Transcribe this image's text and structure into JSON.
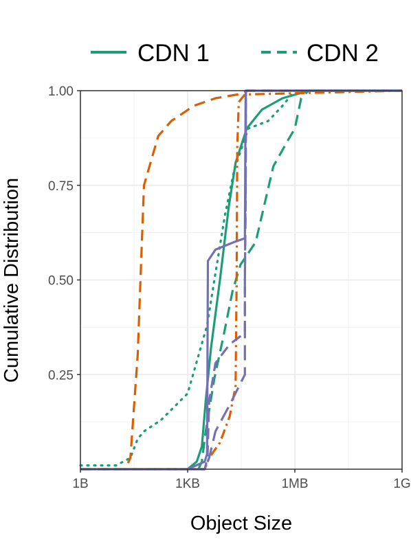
{
  "chart_data": {
    "type": "line",
    "title": "",
    "xlabel": "Object Size",
    "ylabel": "Cumulative Distribution",
    "x_scale": "log10",
    "xlim_bytes": [
      1,
      1000000000
    ],
    "ylim": [
      0,
      1
    ],
    "x_ticks": [
      {
        "label": "1B",
        "value": 1
      },
      {
        "label": "1KB",
        "value": 1000
      },
      {
        "label": "1MB",
        "value": 1000000
      },
      {
        "label": "1G",
        "value": 1000000000
      }
    ],
    "y_ticks": [
      {
        "label": "0.25",
        "value": 0.25
      },
      {
        "label": "0.50",
        "value": 0.5
      },
      {
        "label": "0.75",
        "value": 0.75
      },
      {
        "label": "1.00",
        "value": 1.0
      }
    ],
    "grid": true,
    "legend": {
      "position": "top",
      "entries": [
        {
          "label": "CDN 1",
          "dash": "solid",
          "color": "#1b9e77"
        },
        {
          "label": "CDN 2",
          "dash": "dashed",
          "color": "#1b9e77"
        }
      ]
    },
    "series": [
      {
        "color": "#1b9e77",
        "dash": "solid",
        "points": [
          [
            1000,
            0
          ],
          [
            1800,
            0.02
          ],
          [
            2500,
            0.06
          ],
          [
            3200,
            0.18
          ],
          [
            4500,
            0.32
          ],
          [
            8000,
            0.5
          ],
          [
            14000,
            0.69
          ],
          [
            22000,
            0.81
          ],
          [
            45000,
            0.9
          ],
          [
            120000,
            0.95
          ],
          [
            450000,
            0.98
          ],
          [
            2500000,
            1.0
          ],
          [
            1000000000,
            1.0
          ]
        ]
      },
      {
        "color": "#1b9e77",
        "dash": "dashed",
        "points": [
          [
            2000,
            0
          ],
          [
            2500,
            0.02
          ],
          [
            3200,
            0.1
          ],
          [
            5600,
            0.24
          ],
          [
            10000,
            0.35
          ],
          [
            18000,
            0.47
          ],
          [
            30000,
            0.54
          ],
          [
            80000,
            0.6
          ],
          [
            250000,
            0.8
          ],
          [
            650000,
            0.87
          ],
          [
            1000000,
            0.9
          ],
          [
            1500000,
            0.98
          ],
          [
            2400000,
            1.0
          ],
          [
            1000000000,
            1.0
          ]
        ]
      },
      {
        "color": "#1b9e77",
        "dash": "dotted",
        "points": [
          [
            1,
            0.01
          ],
          [
            10,
            0.01
          ],
          [
            25,
            0.03
          ],
          [
            40,
            0.08
          ],
          [
            60,
            0.1
          ],
          [
            180,
            0.13
          ],
          [
            1000,
            0.2
          ],
          [
            3500,
            0.38
          ],
          [
            5600,
            0.5
          ],
          [
            11000,
            0.67
          ],
          [
            20000,
            0.79
          ],
          [
            50000,
            0.9
          ],
          [
            180000,
            0.92
          ],
          [
            450000,
            0.96
          ],
          [
            1000000,
            1.0
          ],
          [
            1000000000,
            1.0
          ]
        ]
      },
      {
        "color": "#d95f02",
        "dash": "dashed",
        "points": [
          [
            1,
            0
          ],
          [
            18,
            0
          ],
          [
            25,
            0.03
          ],
          [
            40,
            0.3
          ],
          [
            60,
            0.75
          ],
          [
            150,
            0.88
          ],
          [
            350,
            0.92
          ],
          [
            1500,
            0.96
          ],
          [
            6000,
            0.98
          ],
          [
            25000,
            0.99
          ],
          [
            50000,
            1.0
          ],
          [
            1000000000,
            1.0
          ]
        ]
      },
      {
        "color": "#d95f02",
        "dash": "dashdot",
        "points": [
          [
            1,
            0
          ],
          [
            3000,
            0
          ],
          [
            4000,
            0.03
          ],
          [
            8000,
            0.07
          ],
          [
            15000,
            0.14
          ],
          [
            22000,
            0.22
          ],
          [
            23500,
            0.5
          ],
          [
            24500,
            0.85
          ],
          [
            27000,
            0.97
          ],
          [
            40000,
            0.99
          ],
          [
            1000000000,
            1.0
          ]
        ]
      },
      {
        "color": "#7570b3",
        "dash": "solid",
        "points": [
          [
            1,
            0
          ],
          [
            1000,
            0
          ],
          [
            3000,
            0.02
          ],
          [
            3500,
            0.04
          ],
          [
            3700,
            0.55
          ],
          [
            6000,
            0.58
          ],
          [
            20000,
            0.6
          ],
          [
            40000,
            0.61
          ],
          [
            42000,
            1.0
          ],
          [
            1000000000,
            1.0
          ]
        ]
      },
      {
        "color": "#7570b3",
        "dash": "dashed",
        "points": [
          [
            1,
            0
          ],
          [
            3000,
            0
          ],
          [
            3600,
            0.03
          ],
          [
            4000,
            0.18
          ],
          [
            6000,
            0.28
          ],
          [
            15000,
            0.33
          ],
          [
            40000,
            0.36
          ],
          [
            40000,
            0.5
          ],
          [
            42000,
            0.7
          ],
          [
            43000,
            1.0
          ],
          [
            1000000000,
            1.0
          ]
        ]
      },
      {
        "color": "#7570b3",
        "dash": "longdash",
        "points": [
          [
            1,
            0
          ],
          [
            3000,
            0
          ],
          [
            4000,
            0.03
          ],
          [
            6000,
            0.1
          ],
          [
            15000,
            0.17
          ],
          [
            40000,
            0.25
          ],
          [
            40000,
            0.5
          ],
          [
            42000,
            0.75
          ],
          [
            43000,
            1.0
          ],
          [
            1000000000,
            1.0
          ]
        ]
      }
    ]
  }
}
